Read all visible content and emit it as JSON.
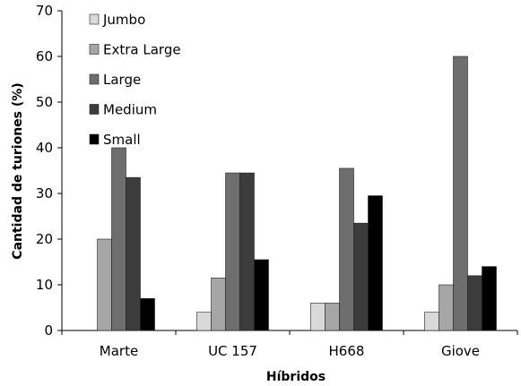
{
  "chart_data": {
    "type": "bar",
    "title": "",
    "xlabel": "Híbridos",
    "ylabel": "Cantidad de turiones (%)",
    "ylim": [
      0,
      70
    ],
    "yticks": [
      0,
      10,
      20,
      30,
      40,
      50,
      60,
      70
    ],
    "grid": false,
    "legend_position": "top-left",
    "categories": [
      "Marte",
      "UC 157",
      "H668",
      "Giove"
    ],
    "series": [
      {
        "name": "Jumbo",
        "color": "#d9d9d9",
        "values": [
          0,
          4,
          6,
          4
        ]
      },
      {
        "name": "Extra Large",
        "color": "#a6a6a6",
        "values": [
          20,
          11.5,
          6,
          10
        ]
      },
      {
        "name": "Large",
        "color": "#6e6e6e",
        "values": [
          40,
          34.5,
          35.5,
          60
        ]
      },
      {
        "name": "Medium",
        "color": "#3c3c3c",
        "values": [
          33.5,
          34.5,
          23.5,
          12
        ]
      },
      {
        "name": "Small",
        "color": "#000000",
        "values": [
          7,
          15.5,
          29.5,
          14
        ]
      }
    ]
  }
}
